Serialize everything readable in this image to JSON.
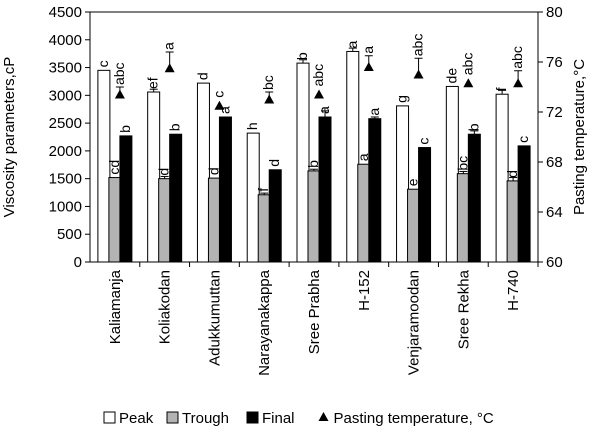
{
  "chart_data": {
    "type": "bar",
    "categories": [
      "Kaliamanja",
      "Koliakodan",
      "Adukkumuttan",
      "Narayanakappa",
      "Sree Prabha",
      "H-152",
      "Venjaramoodan",
      "Sree Rekha",
      "H-740"
    ],
    "series": [
      {
        "name": "Peak",
        "values": [
          3450,
          3060,
          3220,
          2320,
          3580,
          3790,
          2810,
          3160,
          3020
        ],
        "errors": [
          0,
          50,
          0,
          0,
          60,
          60,
          0,
          0,
          70
        ],
        "letters": [
          "c",
          "ef",
          "d",
          "h",
          "b",
          "a",
          "g",
          "de",
          "f"
        ],
        "color": "#ffffff"
      },
      {
        "name": "Trough",
        "values": [
          1520,
          1500,
          1510,
          1210,
          1640,
          1760,
          1310,
          1590,
          1460
        ],
        "errors": [
          0,
          40,
          0,
          30,
          30,
          0,
          0,
          40,
          60
        ],
        "letters": [
          "cd",
          "d",
          "d",
          "f",
          "b",
          "a",
          "e",
          "bc",
          "d"
        ],
        "color": "#b3b3b3"
      },
      {
        "name": "Final",
        "values": [
          2270,
          2300,
          2610,
          1660,
          2610,
          2580,
          2060,
          2300,
          2090
        ],
        "errors": [
          0,
          0,
          0,
          0,
          110,
          30,
          0,
          60,
          0
        ],
        "letters": [
          "b",
          "b",
          "a",
          "d",
          "a",
          "a",
          "c",
          "b",
          "c"
        ],
        "color": "#000000"
      }
    ],
    "pasting_temperature": {
      "name": "Pasting temperature, °C",
      "values": [
        73.4,
        75.5,
        72.5,
        73.0,
        73.4,
        75.6,
        75.0,
        74.3,
        74.3
      ],
      "errors": [
        0.6,
        1.3,
        0,
        0.6,
        0,
        0.9,
        1.3,
        0,
        1.0
      ],
      "letters": [
        "abc",
        "a",
        "c",
        "bc",
        "abc",
        "a",
        "abc",
        "abc",
        "abc"
      ]
    },
    "ylabel": "Viscosity parameters,cP",
    "ylim": [
      0,
      4500
    ],
    "yticks": [
      "0",
      "500",
      "1000",
      "1500",
      "2000",
      "2500",
      "3000",
      "3500",
      "4000",
      "4500"
    ],
    "y2label": "Pasting temperature,°C",
    "y2lim": [
      60,
      80
    ],
    "y2ticks": [
      "60",
      "64",
      "68",
      "72",
      "76",
      "80"
    ],
    "legend_position": "bottom",
    "grid": false
  }
}
